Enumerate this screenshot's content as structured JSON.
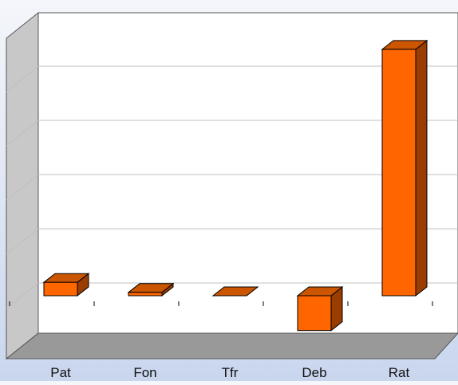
{
  "chart_data": {
    "type": "bar",
    "style": "3d-column",
    "categories": [
      "Pat",
      "Fon",
      "Tfr",
      "Deb",
      "Rat"
    ],
    "series": [
      {
        "values": [
          1.0,
          0.25,
          0.0,
          -2.6,
          18.4
        ]
      }
    ],
    "ylim": [
      -4,
      22
    ],
    "grid": true,
    "colors": {
      "bar_front": "#ff6600",
      "bar_top": "#cc5500",
      "bar_side": "#993d00",
      "bar_outline": "#000000",
      "plot_wall": "#ffffff",
      "side_wall": "#c8c8c8",
      "floor": "#999999",
      "gridline": "#c0c0c0"
    }
  }
}
